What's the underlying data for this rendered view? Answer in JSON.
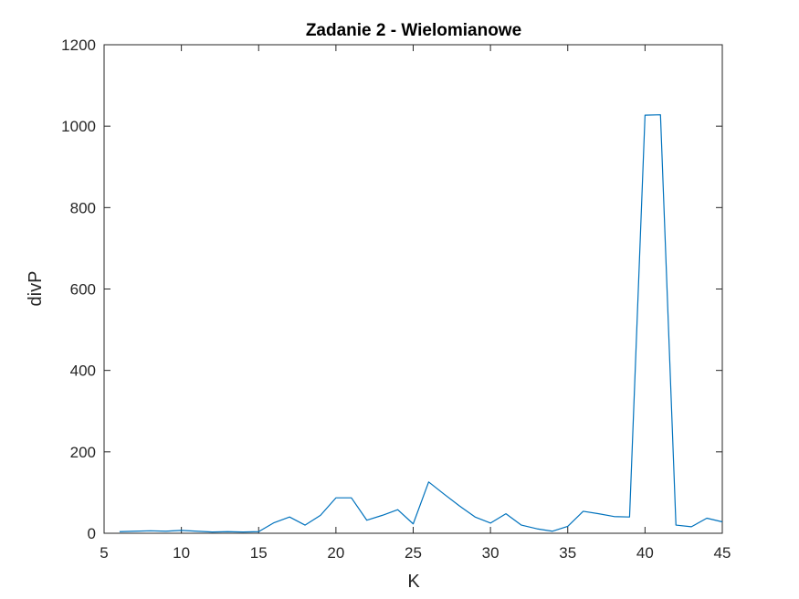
{
  "chart_data": {
    "type": "line",
    "title": "Zadanie 2 - Wielomianowe",
    "xlabel": "K",
    "ylabel": "divP",
    "xlim": [
      5,
      45
    ],
    "ylim": [
      0,
      1200
    ],
    "xticks": [
      5,
      10,
      15,
      20,
      25,
      30,
      35,
      40,
      45
    ],
    "yticks": [
      0,
      200,
      400,
      600,
      800,
      1000,
      1200
    ],
    "grid": false,
    "legend": "none",
    "line_color": "#0072BD",
    "axis_color": "#262626",
    "series": [
      {
        "x": [
          6,
          7,
          8,
          9,
          10,
          11,
          12,
          13,
          14,
          15,
          16,
          17,
          18,
          19,
          20,
          21,
          22,
          23,
          24,
          25,
          26,
          27,
          28,
          29,
          30,
          31,
          32,
          33,
          34,
          35,
          36,
          37,
          38,
          39,
          40,
          41,
          42,
          43,
          44,
          45
        ],
        "values": [
          4,
          5,
          6,
          5,
          7,
          5,
          3,
          4,
          3,
          4,
          26,
          40,
          20,
          44,
          87,
          87,
          32,
          44,
          58,
          23,
          126,
          96,
          67,
          40,
          25,
          48,
          20,
          11,
          5,
          17,
          54,
          48,
          41,
          40,
          1027,
          1028,
          20,
          16,
          37,
          28
        ]
      }
    ]
  }
}
